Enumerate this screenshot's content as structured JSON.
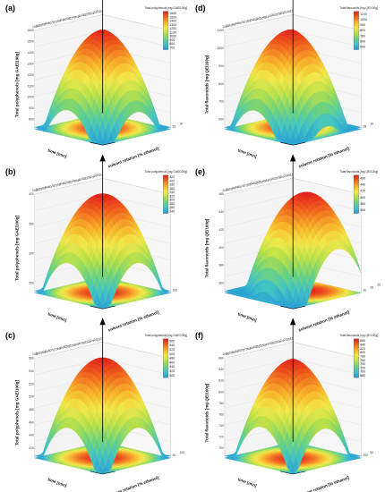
{
  "chart_data": [
    {
      "panel": "(a)",
      "type": "surface3d",
      "colorbar_title": "Total polyphenols [mg GAE/100g]",
      "zlabel": "Total polyphenols [mg GAE/100g]",
      "xlabel": "time [min]",
      "ylabel": "solvent relation [% ethanol]",
      "colorbar_ticks": [
        "1600",
        "1500",
        "1400",
        "1300",
        "1200",
        "1100",
        "1000",
        "900",
        "800",
        "700"
      ],
      "clim": [
        700,
        1600
      ],
      "z_ticks": [
        "1600",
        "1500",
        "1400",
        "1300",
        "1200",
        "1100",
        "1000",
        "900",
        "800"
      ],
      "x_ticks": [
        "28",
        "30"
      ],
      "y_ticks": [
        "100",
        "98",
        "96",
        "94",
        "92",
        "90",
        "88",
        "86",
        "84",
        "82",
        "80",
        "78",
        "76",
        "74",
        "72",
        "70",
        "68",
        "66",
        "64",
        "62",
        "60",
        "58",
        "56",
        "54",
        "52",
        "50",
        "48",
        "46",
        "44",
        "42",
        "40",
        "38",
        "36",
        "34",
        "32",
        "30",
        "28",
        "26",
        "24",
        "22",
        "20",
        "18",
        "16",
        "14",
        "12",
        "10"
      ],
      "surface": {
        "z_peak": 1600,
        "z_edge": 800,
        "center_t": 0.5,
        "center_s": 0.45,
        "fold": true
      }
    },
    {
      "panel": "(b)",
      "type": "surface3d",
      "colorbar_title": "Total polyphenols [mg GAE/100g]",
      "zlabel": "Total polyphenols [mg GAE/100g]",
      "xlabel": "time [min]",
      "ylabel": "solvent relation [% ethanol]",
      "colorbar_ticks": [
        "420",
        "400",
        "380",
        "360",
        "340",
        "320",
        "300",
        "280",
        "260",
        "240"
      ],
      "clim": [
        240,
        420
      ],
      "z_ticks": [
        "400",
        "350",
        "300",
        "250"
      ],
      "x_ticks": [
        "100"
      ],
      "y_ticks": [
        "100",
        "98",
        "96",
        "94",
        "92",
        "90",
        "88",
        "86",
        "84",
        "82",
        "80",
        "78",
        "76",
        "74",
        "72",
        "70",
        "68",
        "66",
        "64",
        "62",
        "60",
        "58",
        "56",
        "54",
        "52",
        "50",
        "48",
        "46",
        "44",
        "42",
        "40",
        "38",
        "36",
        "34",
        "32",
        "30",
        "28",
        "26",
        "24",
        "22",
        "20",
        "18",
        "16",
        "14",
        "12",
        "10"
      ],
      "surface": {
        "z_peak": 420,
        "z_edge": 250,
        "center_t": 0.5,
        "center_s": 0.5,
        "fold": false
      }
    },
    {
      "panel": "(c)",
      "type": "surface3d",
      "colorbar_title": "Total polyphenols [mg GAE/100g]",
      "zlabel": "Total polyphenols [mg GAE/100g]",
      "xlabel": "time [min]",
      "ylabel": "solvent relation [% ethanol]",
      "colorbar_ticks": [
        "560",
        "540",
        "520",
        "500",
        "480",
        "460",
        "440",
        "420",
        "400"
      ],
      "clim": [
        400,
        560
      ],
      "z_ticks": [
        "560",
        "540",
        "520",
        "500",
        "480",
        "460",
        "440",
        "420"
      ],
      "x_ticks": [
        "30",
        "100"
      ],
      "y_ticks": [
        "100",
        "98",
        "96",
        "94",
        "92",
        "90",
        "88",
        "86",
        "84",
        "82",
        "80",
        "78",
        "76",
        "74",
        "72",
        "70",
        "68",
        "66",
        "64",
        "62",
        "60",
        "58",
        "56",
        "54",
        "52",
        "50",
        "48",
        "46",
        "44",
        "42",
        "40",
        "38",
        "36",
        "34",
        "32",
        "30",
        "28",
        "26",
        "24",
        "22",
        "20",
        "18",
        "16",
        "14",
        "12",
        "10"
      ],
      "surface": {
        "z_peak": 560,
        "z_edge": 420,
        "center_t": 0.5,
        "center_s": 0.5,
        "fold": false
      }
    },
    {
      "panel": "(d)",
      "type": "surface3d",
      "colorbar_title": "Total flavonoids [mg QE/100g]",
      "zlabel": "Total flavonoids [mg QE/100g]",
      "xlabel": "time [min]",
      "ylabel": "solvent relation [% ethanol]",
      "colorbar_ticks": [
        "1100",
        "1000",
        "900",
        "800",
        "700",
        "600",
        "500"
      ],
      "clim": [
        500,
        1100
      ],
      "z_ticks": [
        "1100",
        "1000",
        "900",
        "800",
        "700",
        "600"
      ],
      "x_ticks": [
        "28",
        "30"
      ],
      "y_ticks": [
        "100",
        "98",
        "96",
        "94",
        "92",
        "90",
        "88",
        "86",
        "84",
        "82",
        "80",
        "78",
        "76",
        "74",
        "72",
        "70",
        "68",
        "66",
        "64",
        "62",
        "60",
        "58",
        "56",
        "54",
        "52",
        "50",
        "48",
        "46",
        "44",
        "42",
        "40",
        "38",
        "36",
        "34",
        "32",
        "30",
        "28",
        "26",
        "24",
        "22",
        "20",
        "18",
        "16",
        "14",
        "12",
        "10"
      ],
      "surface": {
        "z_peak": 1100,
        "z_edge": 600,
        "center_t": 0.5,
        "center_s": 0.4,
        "fold": true
      }
    },
    {
      "panel": "(e)",
      "type": "surface3d",
      "colorbar_title": "Total flavonoids [mg QE/100g]",
      "zlabel": "Total flavonoids [mg QE/100g]",
      "xlabel": "time [min]",
      "ylabel": "solvent relation [% ethanol]",
      "colorbar_ticks": [
        "460",
        "440",
        "420",
        "400",
        "380",
        "360"
      ],
      "clim": [
        360,
        460
      ],
      "z_ticks": [
        "460",
        "440",
        "420",
        "400",
        "380",
        "360"
      ],
      "x_ticks": [
        "30",
        "28",
        "26"
      ],
      "y_ticks": [
        "100",
        "98",
        "96",
        "94",
        "92",
        "90",
        "88",
        "86",
        "84",
        "82",
        "80",
        "78",
        "76",
        "74",
        "72",
        "70",
        "68",
        "66",
        "64",
        "62",
        "60",
        "58",
        "56",
        "54",
        "52",
        "50",
        "48",
        "46",
        "44",
        "42",
        "40",
        "38",
        "36",
        "34",
        "32",
        "30",
        "28",
        "26",
        "24",
        "22",
        "20",
        "18",
        "16",
        "14",
        "12",
        "10"
      ],
      "surface": {
        "z_peak": 460,
        "z_edge": 360,
        "center_t": 0.35,
        "center_s": 0.55,
        "fold": false
      }
    },
    {
      "panel": "(f)",
      "type": "surface3d",
      "colorbar_title": "Total flavonoids [mg QE/100g]",
      "zlabel": "Total flavonoids [mg QE/100g]",
      "xlabel": "time [min]",
      "ylabel": "solvent relation [% ethanol]",
      "colorbar_ticks": [
        "860",
        "840",
        "820",
        "800",
        "780",
        "760",
        "740",
        "720",
        "700",
        "680"
      ],
      "clim": [
        680,
        860
      ],
      "z_ticks": [
        "860",
        "840",
        "820",
        "800",
        "780",
        "760",
        "740",
        "720",
        "700"
      ],
      "x_ticks": [
        "100",
        "90"
      ],
      "y_ticks": [
        "100",
        "98",
        "96",
        "94",
        "92",
        "90",
        "88",
        "86",
        "84",
        "82",
        "80",
        "78",
        "76",
        "74",
        "72",
        "70",
        "68",
        "66",
        "64",
        "62",
        "60",
        "58",
        "56",
        "54",
        "52",
        "50",
        "48",
        "46",
        "44",
        "42",
        "40",
        "38",
        "36",
        "34",
        "32",
        "30",
        "28",
        "26",
        "24",
        "22",
        "20",
        "18",
        "16",
        "14",
        "12",
        "10"
      ],
      "surface": {
        "z_peak": 860,
        "z_edge": 720,
        "center_t": 0.55,
        "center_s": 0.5,
        "fold": true
      }
    }
  ],
  "colormap": [
    "#2a9fd6",
    "#42c4c4",
    "#6fd27a",
    "#b8e04a",
    "#f2e84a",
    "#f7b32b",
    "#f06a1e",
    "#e3221c"
  ]
}
